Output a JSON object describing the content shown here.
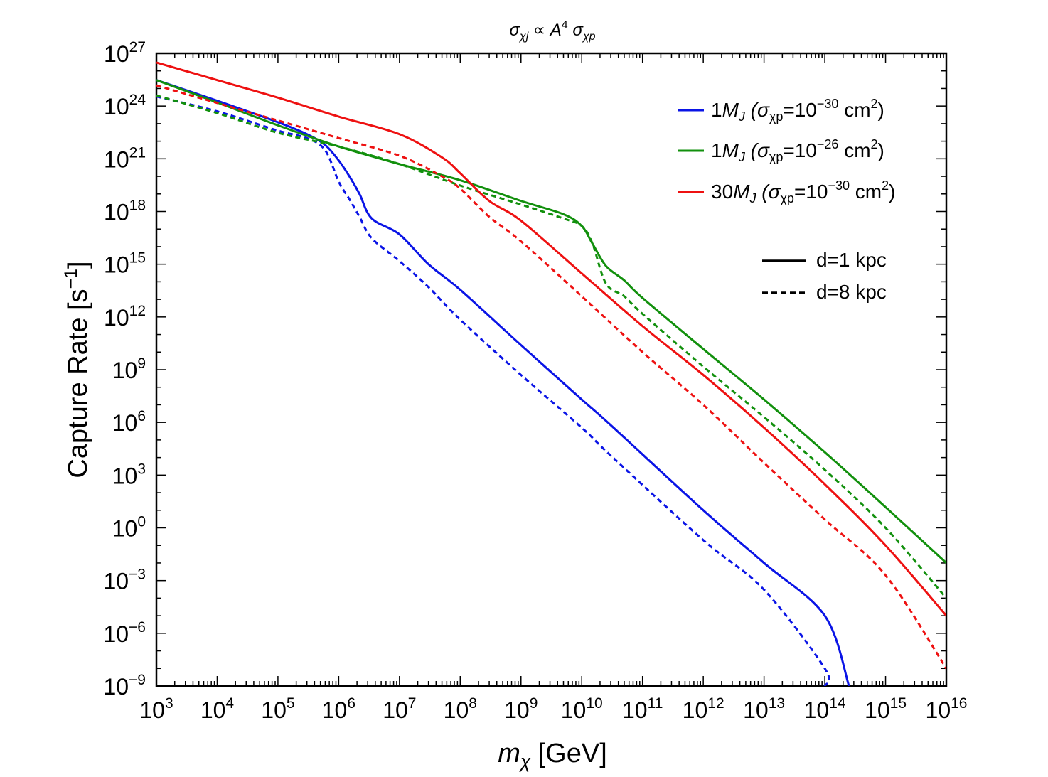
{
  "chart_data": {
    "type": "line",
    "title": {
      "sigma": "σ",
      "sub1": "χj",
      "prop": " ∝ ",
      "a": "A",
      "exp": "4",
      "sigma2": " σ",
      "sub2": "χp"
    },
    "xlabel": {
      "m": "m",
      "chi": "χ",
      "unit": " [GeV]"
    },
    "ylabel": {
      "main": "Capture Rate [s",
      "exp": "−1",
      "close": "]"
    },
    "x_scale": "log",
    "y_scale": "log",
    "xlim": [
      1000.0,
      1e+16
    ],
    "ylim": [
      1e-09,
      1e+27
    ],
    "x_ticks": [
      {
        "base": "10",
        "exp": "3",
        "value": 1000.0
      },
      {
        "base": "10",
        "exp": "4",
        "value": 10000.0
      },
      {
        "base": "10",
        "exp": "5",
        "value": 100000.0
      },
      {
        "base": "10",
        "exp": "6",
        "value": 1000000.0
      },
      {
        "base": "10",
        "exp": "7",
        "value": 10000000.0
      },
      {
        "base": "10",
        "exp": "8",
        "value": 100000000.0
      },
      {
        "base": "10",
        "exp": "9",
        "value": 1000000000.0
      },
      {
        "base": "10",
        "exp": "10",
        "value": 10000000000.0
      },
      {
        "base": "10",
        "exp": "11",
        "value": 100000000000.0
      },
      {
        "base": "10",
        "exp": "12",
        "value": 1000000000000.0
      },
      {
        "base": "10",
        "exp": "13",
        "value": 10000000000000.0
      },
      {
        "base": "10",
        "exp": "14",
        "value": 100000000000000.0
      },
      {
        "base": "10",
        "exp": "15",
        "value": 1000000000000000.0
      },
      {
        "base": "10",
        "exp": "16",
        "value": 1e+16
      }
    ],
    "y_ticks": [
      {
        "base": "10",
        "exp": "27",
        "value": 1e+27
      },
      {
        "base": "10",
        "exp": "24",
        "value": 1e+24
      },
      {
        "base": "10",
        "exp": "21",
        "value": 1e+21
      },
      {
        "base": "10",
        "exp": "18",
        "value": 1e+18
      },
      {
        "base": "10",
        "exp": "15",
        "value": 1000000000000000.0
      },
      {
        "base": "10",
        "exp": "12",
        "value": 1000000000000.0
      },
      {
        "base": "10",
        "exp": "9",
        "value": 1000000000.0
      },
      {
        "base": "10",
        "exp": "6",
        "value": 1000000.0
      },
      {
        "base": "10",
        "exp": "3",
        "value": 1000.0
      },
      {
        "base": "10",
        "exp": "0",
        "value": 1.0
      },
      {
        "base": "10",
        "exp": "−3",
        "value": 0.001
      },
      {
        "base": "10",
        "exp": "−6",
        "value": 1e-06
      },
      {
        "base": "10",
        "exp": "−9",
        "value": 1e-09
      }
    ],
    "grid": false,
    "legend_position": "top-right",
    "colors": {
      "blue": "#0a14e6",
      "green": "#12900d",
      "red": "#ee1111"
    },
    "legend": {
      "series": [
        {
          "prefix": "1",
          "m": "M",
          "j": "J",
          "open": " (σ",
          "sub": "χp",
          "eq": "=10",
          "exp": "−30",
          "unit": " cm",
          "sq": "2",
          "close": ")",
          "color": "#0a14e6"
        },
        {
          "prefix": "1",
          "m": "M",
          "j": "J",
          "open": " (σ",
          "sub": "χp",
          "eq": "=10",
          "exp": "−26",
          "unit": " cm",
          "sq": "2",
          "close": ")",
          "color": "#12900d"
        },
        {
          "prefix": "30",
          "m": "M",
          "j": "J",
          "open": " (σ",
          "sub": "χp",
          "eq": "=10",
          "exp": "−30",
          "unit": " cm",
          "sq": "2",
          "close": ")",
          "color": "#ee1111"
        }
      ],
      "styles": [
        {
          "label": "d=1 kpc",
          "dash": "solid"
        },
        {
          "label": "d=8 kpc",
          "dash": "dashed"
        }
      ]
    },
    "series": [
      {
        "color": "#0a14e6",
        "style": "solid",
        "x": [
          1000.0,
          10000.0,
          100000.0,
          300000.0,
          600000.0,
          1000000.0,
          1500000.0,
          2200000.0,
          3500000.0,
          10000000.0,
          30000000.0,
          100000000.0,
          1000000000.0,
          10000000000.0,
          30000000000.0,
          1000000000000.0,
          10000000000000.0,
          100000000000000.0,
          250000000000000.0
        ],
        "y": [
          3e+25,
          2e+24,
          1.2e+23,
          2.5e+22,
          6e+21,
          8e+20,
          1e+20,
          1e+19,
          4e+17,
          5e+16,
          1000000000000000.0,
          35000000000000.0,
          25000000000.0,
          20000000.0,
          700000.0,
          10.0,
          0.01,
          1e-05,
          1e-09
        ]
      },
      {
        "color": "#0a14e6",
        "style": "dashed",
        "x": [
          1000.0,
          10000.0,
          100000.0,
          300000.0,
          600000.0,
          1000000.0,
          1500000.0,
          2200000.0,
          3500000.0,
          10000000.0,
          30000000.0,
          100000000.0,
          1000000000.0,
          10000000000.0,
          30000000000.0,
          1000000000000.0,
          10000000000000.0,
          100000000000000.0,
          100000000000000.0
        ],
        "y": [
          3.5e+24,
          5e+23,
          4e+22,
          1.5e+22,
          3e+21,
          5e+19,
          5e+18,
          5e+17,
          3e+16,
          1500000000000000.0,
          50000000000000.0,
          700000000000.0,
          500000000.0,
          500000.0,
          13000.0,
          0.2,
          0.0003,
          1e-08,
          1e-09
        ]
      },
      {
        "color": "#12900d",
        "style": "solid",
        "x": [
          1000.0,
          10000.0,
          100000.0,
          1000000.0,
          10000000.0,
          100000000.0,
          1000000000.0,
          5000000000.0,
          10000000000.0,
          15000000000.0,
          25000000000.0,
          50000000000.0,
          100000000000.0,
          1000000000000.0,
          10000000000000.0,
          100000000000000.0,
          1000000000000000.0,
          1e+16
        ],
        "y": [
          3e+25,
          1.6e+24,
          8e+22,
          5e+21,
          5e+20,
          6e+19,
          4e+18,
          7e+17,
          1.5e+17,
          1.5e+16,
          800000000000000.0,
          120000000000000.0,
          12000000000000.0,
          15000000000.0,
          20000000.0,
          20000.0,
          15.0,
          0.01
        ]
      },
      {
        "color": "#12900d",
        "style": "dashed",
        "x": [
          1000.0,
          10000.0,
          100000.0,
          1000000.0,
          10000000.0,
          100000000.0,
          1000000000.0,
          5000000000.0,
          10000000000.0,
          15000000000.0,
          25000000000.0,
          50000000000.0,
          100000000000.0,
          1000000000000.0,
          10000000000000.0,
          100000000000000.0,
          1000000000000000.0,
          1e+16
        ],
        "y": [
          4e+24,
          4e+23,
          3e+22,
          5e+21,
          5e+20,
          3e+19,
          2.5e+18,
          4e+17,
          1.5e+17,
          1.5e+16,
          80000000000000.0,
          15000000000000.0,
          1500000000000.0,
          1500000000.0,
          2000000.0,
          2000.0,
          1.0,
          0.0001
        ]
      },
      {
        "color": "#ee1111",
        "style": "solid",
        "x": [
          1000.0,
          10000.0,
          100000.0,
          1000000.0,
          10000000.0,
          50000000.0,
          100000000.0,
          300000000.0,
          1000000000.0,
          10000000000.0,
          100000000000.0,
          1000000000000.0,
          10000000000000.0,
          100000000000000.0,
          1000000000000000.0,
          1e+16
        ],
        "y": [
          3e+26,
          3e+25,
          3e+24,
          2.5e+23,
          2.5e+22,
          1.2e+21,
          1.5e+20,
          4e+18,
          3e+17,
          300000000000000.0,
          300000000000.0,
          500000000.0,
          500000.0,
          300.0,
          0.1,
          1e-05
        ]
      },
      {
        "color": "#ee1111",
        "style": "dashed",
        "x": [
          1000.0,
          10000.0,
          100000.0,
          1000000.0,
          10000000.0,
          50000000.0,
          100000000.0,
          300000000.0,
          1000000000.0,
          10000000000.0,
          100000000000.0,
          1000000000000.0,
          10000000000000.0,
          100000000000000.0,
          1000000000000000.0,
          1e+16
        ],
        "y": [
          1.5e+25,
          1.5e+24,
          1.5e+23,
          1.5e+22,
          1.5e+21,
          1e+20,
          2e+19,
          5e+17,
          2e+16,
          15000000000000.0,
          10000000000.0,
          10000000.0,
          5000.0,
          3.0,
          0.002,
          1e-08
        ]
      }
    ]
  }
}
